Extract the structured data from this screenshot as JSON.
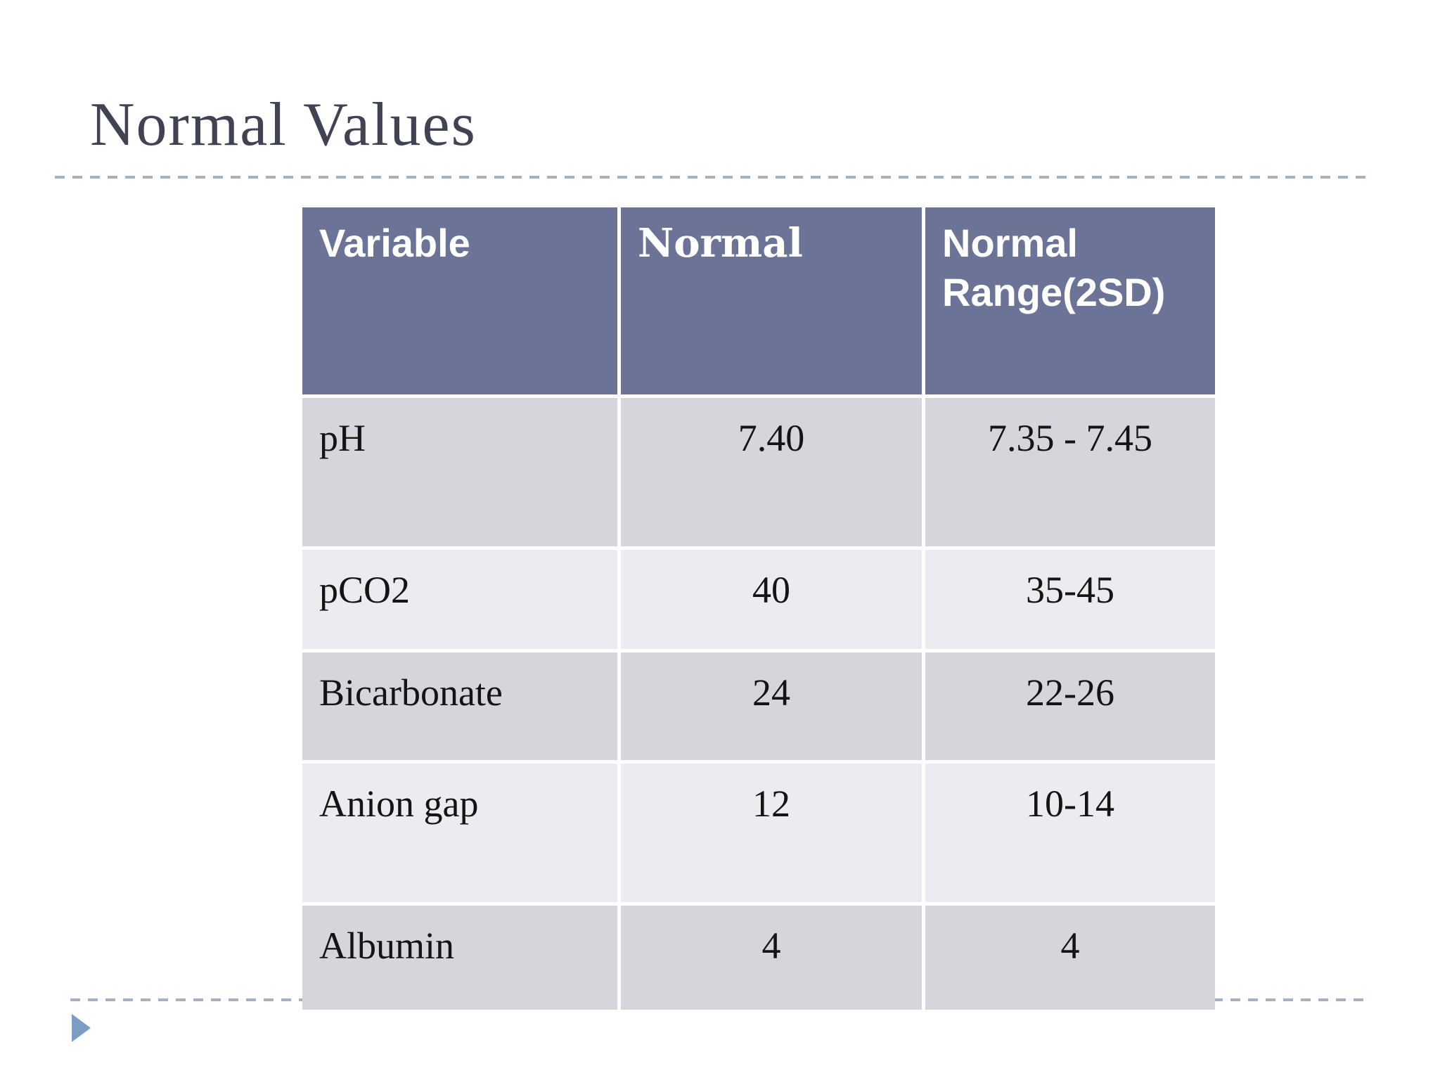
{
  "slide": {
    "title": "Normal Values"
  },
  "table": {
    "columns": [
      {
        "label": "Variable"
      },
      {
        "label": "Normal"
      },
      {
        "label": "Normal Range(2SD)"
      }
    ],
    "rows": [
      {
        "variable": "pH",
        "normal": "7.40",
        "normal_range": "7.35 - 7.45"
      },
      {
        "variable": "pCO2",
        "normal": "40",
        "normal_range": "35-45"
      },
      {
        "variable": "Bicarbonate",
        "normal": "24",
        "normal_range": "22-26"
      },
      {
        "variable": "Anion gap",
        "normal": "12",
        "normal_range": "10-14"
      },
      {
        "variable": "Albumin",
        "normal": "4",
        "normal_range": "4"
      }
    ]
  },
  "icons": {
    "bullet_arrow": "right-pointing-triangle"
  },
  "colors": {
    "header_bg": "#6b7497",
    "row_dark": "#d4d6db",
    "row_light": "#eaecf0",
    "accent_arrow": "#7e9cc2",
    "divider": "#a6b2c3",
    "title_text": "#3f4353"
  }
}
